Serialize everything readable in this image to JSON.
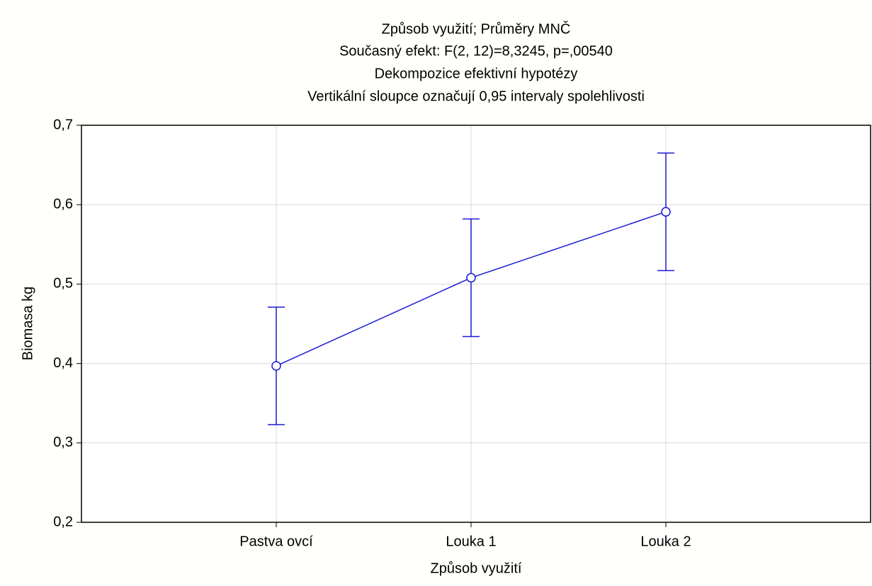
{
  "chart_data": {
    "type": "line",
    "title": [
      "Způsob využití; Průměry MNČ",
      "Současný efekt: F(2, 12)=8,3245, p=,00540",
      "Dekompozice efektivní hypotézy",
      "Vertikální sloupce označují 0,95 intervaly spolehlivosti"
    ],
    "x_label": "Způsob využití",
    "y_label": "Biomasa kg",
    "categories": [
      "Pastva ovcí",
      "Louka 1",
      "Louka 2"
    ],
    "series": [
      {
        "color": "#1a1ad6",
        "values": [
          0.397,
          0.508,
          0.591
        ],
        "error": [
          0.074,
          0.074,
          0.074
        ]
      }
    ],
    "ylim": [
      0.2,
      0.7
    ],
    "yticks": [
      {
        "value": 0.2,
        "label": "0,2"
      },
      {
        "value": 0.3,
        "label": "0,3"
      },
      {
        "value": 0.4,
        "label": "0,4"
      },
      {
        "value": 0.5,
        "label": "0,5"
      },
      {
        "value": 0.6,
        "label": "0,6"
      },
      {
        "value": 0.7,
        "label": "0,7"
      }
    ],
    "grid": true
  }
}
